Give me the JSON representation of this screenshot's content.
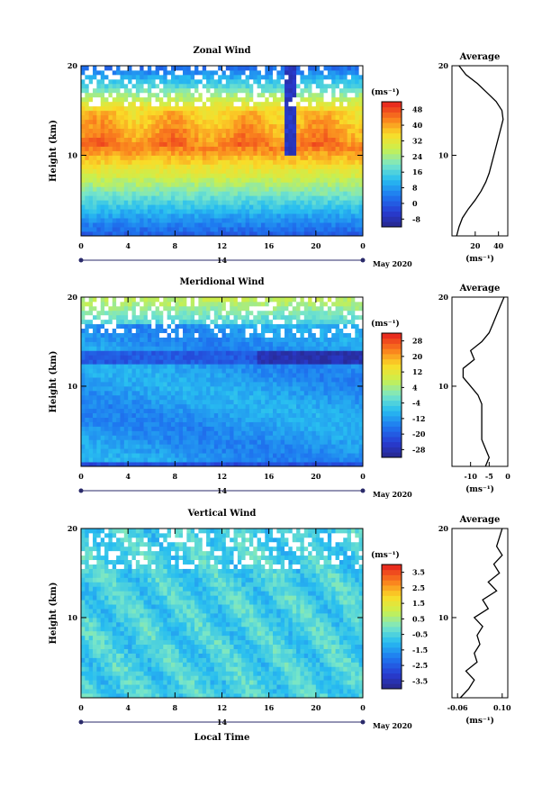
{
  "chart_data": [
    {
      "type": "heatmap",
      "title": "Zonal Wind",
      "ylabel": "Height (km)",
      "units": "(ms⁻¹)",
      "ylim": [
        1,
        20
      ],
      "yticks": [
        "10",
        "20"
      ],
      "xticks": [
        "0",
        "4",
        "8",
        "12",
        "16",
        "20",
        "0"
      ],
      "date_label": "14",
      "month_label": "May 2020",
      "colorbar": {
        "ticks": [
          "48",
          "40",
          "32",
          "24",
          "16",
          "8",
          "0",
          "-8"
        ],
        "range": [
          -12,
          52
        ]
      },
      "profile": {
        "title": "Average",
        "xlabel": "(ms⁻¹)",
        "xticks": [
          "20",
          "40"
        ],
        "xlim": [
          0,
          48
        ],
        "heights": [
          1,
          2,
          3,
          4,
          5,
          6,
          7,
          8,
          9,
          10,
          11,
          12,
          13,
          14,
          15,
          16,
          17,
          18,
          19,
          20
        ],
        "values": [
          4,
          6,
          9,
          14,
          20,
          25,
          29,
          32,
          34,
          36,
          38,
          40,
          42,
          44,
          43,
          38,
          30,
          22,
          12,
          6
        ]
      }
    },
    {
      "type": "heatmap",
      "title": "Meridional Wind",
      "ylabel": "Height (km)",
      "units": "(ms⁻¹)",
      "ylim": [
        1,
        20
      ],
      "yticks": [
        "10",
        "20"
      ],
      "xticks": [
        "0",
        "4",
        "8",
        "12",
        "16",
        "20",
        "0"
      ],
      "date_label": "14",
      "month_label": "May 2020",
      "colorbar": {
        "ticks": [
          "28",
          "20",
          "12",
          "4",
          "-4",
          "-12",
          "-20",
          "-28"
        ],
        "range": [
          -32,
          32
        ]
      },
      "profile": {
        "title": "Average",
        "xlabel": "(ms⁻¹)",
        "xticks": [
          "-10",
          "-5",
          "0"
        ],
        "xlim": [
          -15,
          0
        ],
        "heights": [
          1,
          2,
          3,
          4,
          5,
          6,
          7,
          8,
          9,
          10,
          11,
          12,
          13,
          14,
          15,
          16,
          17,
          18,
          19,
          20
        ],
        "values": [
          -6,
          -5,
          -6,
          -7,
          -7,
          -7,
          -7,
          -7,
          -8,
          -10,
          -12,
          -12,
          -9,
          -10,
          -7,
          -5,
          -4,
          -3,
          -2,
          -1
        ]
      }
    },
    {
      "type": "heatmap",
      "title": "Vertical Wind",
      "ylabel": "Height (km)",
      "xlabel": "Local Time",
      "units": "(ms⁻¹)",
      "ylim": [
        1,
        20
      ],
      "yticks": [
        "10",
        "20"
      ],
      "xticks": [
        "0",
        "4",
        "8",
        "12",
        "16",
        "20",
        "0"
      ],
      "date_label": "14",
      "month_label": "May 2020",
      "colorbar": {
        "ticks": [
          "3.5",
          "2.5",
          "1.5",
          "0.5",
          "-0.5",
          "-1.5",
          "-2.5",
          "-3.5"
        ],
        "range": [
          -4,
          4
        ]
      },
      "profile": {
        "title": "Average",
        "xlabel": "(ms⁻¹)",
        "xticks": [
          "-0.06",
          "0.10"
        ],
        "xlim": [
          -0.08,
          0.12
        ],
        "heights": [
          1,
          2,
          3,
          4,
          5,
          6,
          7,
          8,
          9,
          10,
          11,
          12,
          13,
          14,
          15,
          16,
          17,
          18,
          19,
          20
        ],
        "values": [
          -0.05,
          -0.02,
          0.0,
          -0.03,
          0.01,
          0.0,
          0.02,
          0.01,
          0.03,
          0.0,
          0.05,
          0.03,
          0.08,
          0.05,
          0.09,
          0.07,
          0.1,
          0.08,
          0.09,
          0.1
        ]
      }
    }
  ]
}
